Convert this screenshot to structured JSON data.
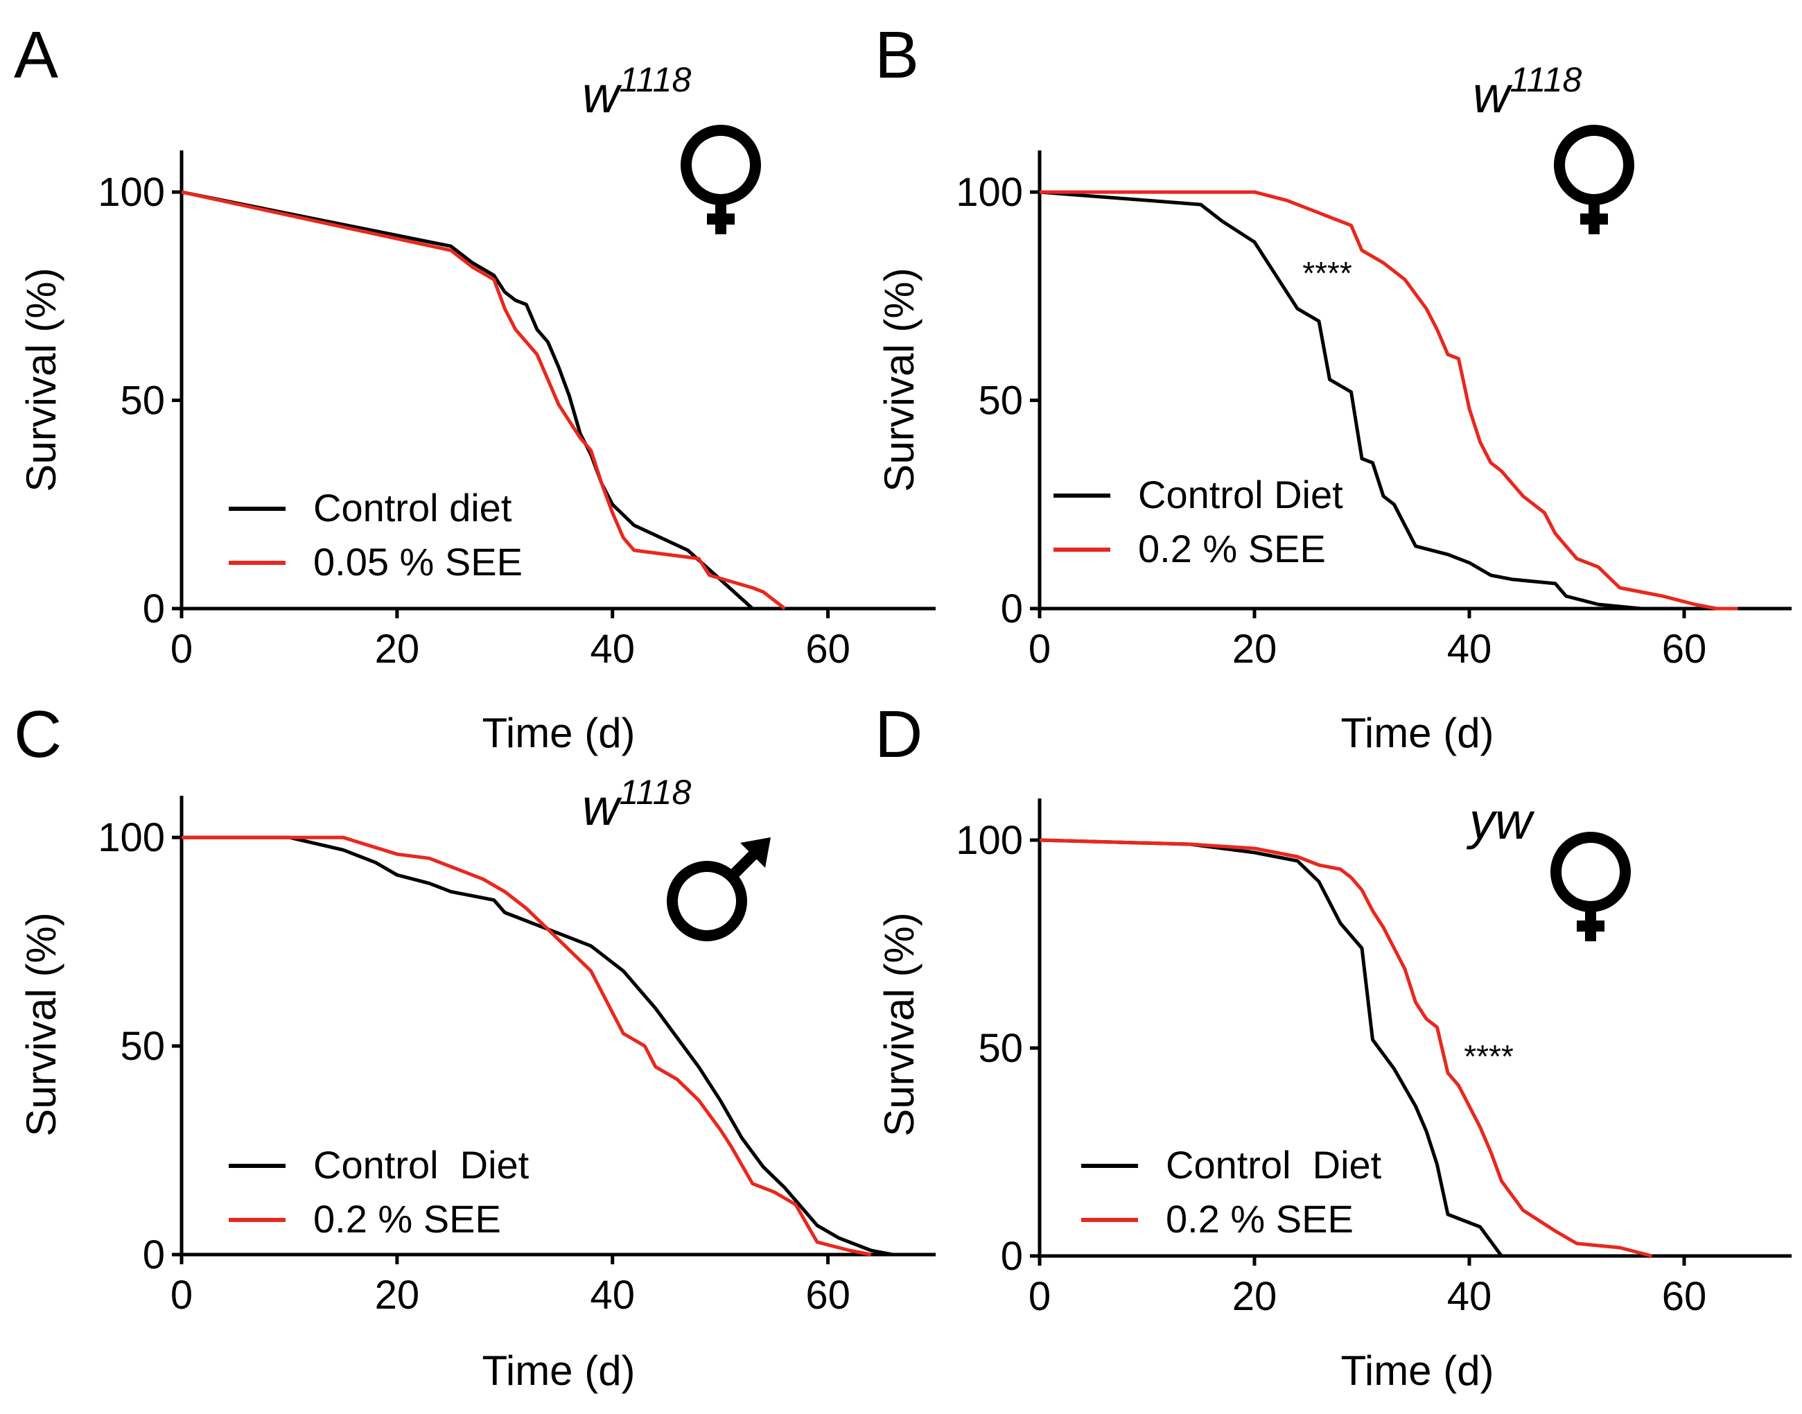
{
  "colors": {
    "control": "#000000",
    "treatment": "#e8281e"
  },
  "chart_data": [
    {
      "type": "line",
      "panel": "A",
      "genotype_base": "w",
      "genotype_sup": "1118",
      "sex": "female",
      "significance": "",
      "xlabel": "Time (d)",
      "ylabel": "Survival (%)",
      "xlim": [
        0,
        70
      ],
      "ylim": [
        0,
        110
      ],
      "xticks": [
        "0",
        "20",
        "40",
        "60"
      ],
      "yticks": [
        "0",
        "50",
        "100"
      ],
      "legend": [
        "Control diet",
        "0.05 % SEE"
      ],
      "series": [
        {
          "name": "Control diet",
          "color_key": "control",
          "points": [
            [
              0,
              100
            ],
            [
              25,
              87
            ],
            [
              27,
              83
            ],
            [
              29,
              80
            ],
            [
              30,
              76
            ],
            [
              31,
              74
            ],
            [
              32,
              73
            ],
            [
              33,
              67
            ],
            [
              34,
              64
            ],
            [
              35,
              58
            ],
            [
              36,
              51
            ],
            [
              37,
              42
            ],
            [
              38,
              37
            ],
            [
              39,
              30
            ],
            [
              40,
              25
            ],
            [
              42,
              20
            ],
            [
              47,
              14
            ],
            [
              50,
              7
            ],
            [
              53,
              0
            ]
          ]
        },
        {
          "name": "0.05 % SEE",
          "color_key": "treatment",
          "points": [
            [
              0,
              100
            ],
            [
              25,
              86
            ],
            [
              27,
              82
            ],
            [
              29,
              79
            ],
            [
              30,
              72
            ],
            [
              31,
              67
            ],
            [
              32,
              64
            ],
            [
              33,
              61
            ],
            [
              34,
              55
            ],
            [
              35,
              49
            ],
            [
              36,
              45
            ],
            [
              37,
              41
            ],
            [
              38,
              38
            ],
            [
              39,
              30
            ],
            [
              40,
              23
            ],
            [
              41,
              17
            ],
            [
              42,
              14
            ],
            [
              48,
              12
            ],
            [
              49,
              8
            ],
            [
              53,
              5
            ],
            [
              54,
              4
            ],
            [
              56,
              0
            ]
          ]
        }
      ]
    },
    {
      "type": "line",
      "panel": "B",
      "genotype_base": "w",
      "genotype_sup": "1118",
      "sex": "female",
      "significance": "****",
      "xlabel": "Time (d)",
      "ylabel": "Survival (%)",
      "xlim": [
        0,
        70
      ],
      "ylim": [
        0,
        110
      ],
      "xticks": [
        "0",
        "20",
        "40",
        "60"
      ],
      "yticks": [
        "0",
        "50",
        "100"
      ],
      "legend": [
        "Control Diet",
        "0.2 % SEE"
      ],
      "series": [
        {
          "name": "Control Diet",
          "color_key": "control",
          "points": [
            [
              0,
              100
            ],
            [
              15,
              97
            ],
            [
              17,
              93
            ],
            [
              20,
              88
            ],
            [
              22,
              80
            ],
            [
              24,
              72
            ],
            [
              26,
              69
            ],
            [
              27,
              55
            ],
            [
              29,
              52
            ],
            [
              30,
              36
            ],
            [
              31,
              35
            ],
            [
              32,
              27
            ],
            [
              33,
              25
            ],
            [
              34,
              20
            ],
            [
              35,
              15
            ],
            [
              38,
              13
            ],
            [
              40,
              11
            ],
            [
              42,
              8
            ],
            [
              44,
              7
            ],
            [
              48,
              6
            ],
            [
              49,
              3
            ],
            [
              52,
              1
            ],
            [
              56,
              0
            ],
            [
              60,
              0
            ]
          ]
        },
        {
          "name": "0.2 % SEE",
          "color_key": "treatment",
          "points": [
            [
              0,
              100
            ],
            [
              20,
              100
            ],
            [
              23,
              98
            ],
            [
              26,
              95
            ],
            [
              28,
              93
            ],
            [
              29,
              92
            ],
            [
              30,
              86
            ],
            [
              32,
              83
            ],
            [
              34,
              79
            ],
            [
              36,
              72
            ],
            [
              37,
              67
            ],
            [
              38,
              61
            ],
            [
              39,
              60
            ],
            [
              40,
              48
            ],
            [
              41,
              40
            ],
            [
              42,
              35
            ],
            [
              43,
              33
            ],
            [
              45,
              27
            ],
            [
              47,
              23
            ],
            [
              48,
              18
            ],
            [
              50,
              12
            ],
            [
              52,
              10
            ],
            [
              54,
              5
            ],
            [
              58,
              3
            ],
            [
              61,
              1
            ],
            [
              63,
              0
            ],
            [
              65,
              0
            ]
          ]
        }
      ]
    },
    {
      "type": "line",
      "panel": "C",
      "genotype_base": "w",
      "genotype_sup": "1118",
      "sex": "male",
      "significance": "",
      "xlabel": "Time (d)",
      "ylabel": "Survival (%)",
      "xlim": [
        0,
        70
      ],
      "ylim": [
        0,
        110
      ],
      "xticks": [
        "0",
        "20",
        "40",
        "60"
      ],
      "yticks": [
        "0",
        "50",
        "100"
      ],
      "legend": [
        "Control  Diet",
        "0.2 % SEE"
      ],
      "series": [
        {
          "name": "Control  Diet",
          "color_key": "control",
          "points": [
            [
              0,
              100
            ],
            [
              10,
              100
            ],
            [
              15,
              97
            ],
            [
              18,
              94
            ],
            [
              20,
              91
            ],
            [
              23,
              89
            ],
            [
              25,
              87
            ],
            [
              27,
              86
            ],
            [
              29,
              85
            ],
            [
              30,
              82
            ],
            [
              32,
              80
            ],
            [
              34,
              78
            ],
            [
              36,
              76
            ],
            [
              38,
              74
            ],
            [
              41,
              68
            ],
            [
              44,
              59
            ],
            [
              46,
              52
            ],
            [
              48,
              45
            ],
            [
              50,
              37
            ],
            [
              52,
              28
            ],
            [
              54,
              21
            ],
            [
              56,
              16
            ],
            [
              57,
              13
            ],
            [
              59,
              7
            ],
            [
              61,
              4
            ],
            [
              64,
              1
            ],
            [
              66,
              0
            ]
          ]
        },
        {
          "name": "0.2 % SEE",
          "color_key": "treatment",
          "points": [
            [
              0,
              100
            ],
            [
              15,
              100
            ],
            [
              20,
              96
            ],
            [
              23,
              95
            ],
            [
              26,
              92
            ],
            [
              28,
              90
            ],
            [
              30,
              87
            ],
            [
              32,
              83
            ],
            [
              34,
              78
            ],
            [
              36,
              73
            ],
            [
              38,
              68
            ],
            [
              39,
              63
            ],
            [
              41,
              53
            ],
            [
              43,
              50
            ],
            [
              44,
              45
            ],
            [
              46,
              42
            ],
            [
              48,
              37
            ],
            [
              50,
              30
            ],
            [
              51,
              26
            ],
            [
              53,
              17
            ],
            [
              55,
              15
            ],
            [
              57,
              12
            ],
            [
              59,
              3
            ],
            [
              62,
              1
            ],
            [
              64,
              0
            ]
          ]
        }
      ]
    },
    {
      "type": "line",
      "panel": "D",
      "genotype_base": "yw",
      "genotype_sup": "",
      "sex": "female",
      "significance": "****",
      "xlabel": "Time (d)",
      "ylabel": "Survival (%)",
      "xlim": [
        0,
        70
      ],
      "ylim": [
        0,
        110
      ],
      "xticks": [
        "0",
        "20",
        "40",
        "60"
      ],
      "yticks": [
        "0",
        "50",
        "100"
      ],
      "legend": [
        "Control  Diet",
        "0.2 % SEE"
      ],
      "series": [
        {
          "name": "Control  Diet",
          "color_key": "control",
          "points": [
            [
              0,
              100
            ],
            [
              14,
              99
            ],
            [
              20,
              97
            ],
            [
              24,
              95
            ],
            [
              26,
              90
            ],
            [
              28,
              80
            ],
            [
              30,
              74
            ],
            [
              31,
              52
            ],
            [
              33,
              45
            ],
            [
              35,
              36
            ],
            [
              36,
              30
            ],
            [
              37,
              22
            ],
            [
              38,
              10
            ],
            [
              40,
              8
            ],
            [
              41,
              7
            ],
            [
              43,
              0
            ]
          ]
        },
        {
          "name": "0.2 % SEE",
          "color_key": "treatment",
          "points": [
            [
              0,
              100
            ],
            [
              14,
              99
            ],
            [
              20,
              98
            ],
            [
              22,
              97
            ],
            [
              24,
              96
            ],
            [
              26,
              94
            ],
            [
              28,
              93
            ],
            [
              29,
              91
            ],
            [
              30,
              88
            ],
            [
              31,
              83
            ],
            [
              32,
              79
            ],
            [
              34,
              69
            ],
            [
              35,
              61
            ],
            [
              36,
              57
            ],
            [
              37,
              55
            ],
            [
              38,
              44
            ],
            [
              39,
              41
            ],
            [
              40,
              36
            ],
            [
              41,
              31
            ],
            [
              42,
              25
            ],
            [
              43,
              18
            ],
            [
              45,
              11
            ],
            [
              48,
              6
            ],
            [
              50,
              3
            ],
            [
              54,
              2
            ],
            [
              57,
              0
            ]
          ]
        }
      ]
    }
  ]
}
